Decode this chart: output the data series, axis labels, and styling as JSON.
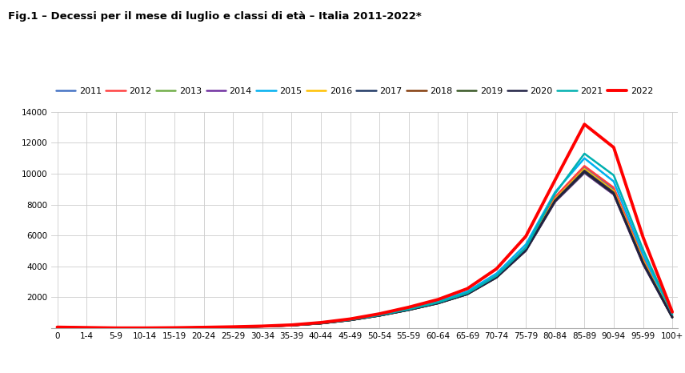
{
  "title": "Fig.1 – Decessi per il mese di luglio e classi di età – Italia 2011-2022*",
  "age_groups": [
    "0",
    "1-4",
    "5-9",
    "10-14",
    "15-19",
    "20-24",
    "25-29",
    "30-34",
    "35-39",
    "40-44",
    "45-49",
    "50-54",
    "55-59",
    "60-64",
    "65-69",
    "70-74",
    "75-79",
    "80-84",
    "85-89",
    "90-94",
    "95-99",
    "100+"
  ],
  "years": [
    "2011",
    "2012",
    "2013",
    "2014",
    "2015",
    "2016",
    "2017",
    "2018",
    "2019",
    "2020",
    "2021",
    "2022"
  ],
  "colors": {
    "2011": "#4472C4",
    "2012": "#FF4040",
    "2013": "#70AD47",
    "2014": "#7030A0",
    "2015": "#00B0F0",
    "2016": "#FFC000",
    "2017": "#1F3864",
    "2018": "#843C0C",
    "2019": "#375623",
    "2020": "#1F2044",
    "2021": "#00B0B0",
    "2022": "#FF0000"
  },
  "linewidths": {
    "2011": 1.8,
    "2012": 1.8,
    "2013": 1.8,
    "2014": 1.8,
    "2015": 1.8,
    "2016": 1.8,
    "2017": 1.8,
    "2018": 1.8,
    "2019": 1.8,
    "2020": 1.8,
    "2021": 1.8,
    "2022": 2.8
  },
  "data": {
    "2011": [
      60,
      40,
      18,
      18,
      30,
      55,
      85,
      125,
      195,
      330,
      545,
      845,
      1220,
      1660,
      2260,
      3380,
      5180,
      8450,
      10400,
      9000,
      4500,
      750
    ],
    "2012": [
      60,
      40,
      18,
      18,
      30,
      55,
      85,
      125,
      195,
      330,
      545,
      850,
      1225,
      1665,
      2265,
      3400,
      5210,
      8500,
      10500,
      9100,
      4550,
      760
    ],
    "2013": [
      58,
      38,
      17,
      17,
      28,
      52,
      82,
      122,
      190,
      322,
      535,
      835,
      1205,
      1640,
      2230,
      3330,
      5080,
      8300,
      10200,
      8800,
      4300,
      720
    ],
    "2014": [
      55,
      35,
      16,
      16,
      26,
      50,
      80,
      118,
      185,
      315,
      525,
      820,
      1185,
      1615,
      2200,
      3280,
      5010,
      8180,
      10050,
      8650,
      4150,
      700
    ],
    "2015": [
      62,
      42,
      19,
      19,
      32,
      58,
      90,
      132,
      205,
      348,
      572,
      885,
      1282,
      1745,
      2375,
      3545,
      5420,
      8820,
      11000,
      9500,
      4800,
      820
    ],
    "2016": [
      58,
      38,
      17,
      17,
      28,
      52,
      82,
      122,
      190,
      322,
      535,
      835,
      1205,
      1645,
      2238,
      3345,
      5120,
      8350,
      10300,
      8880,
      4380,
      730
    ],
    "2017": [
      57,
      37,
      16,
      16,
      27,
      51,
      81,
      121,
      188,
      318,
      530,
      828,
      1198,
      1632,
      2220,
      3315,
      5070,
      8280,
      10200,
      8780,
      4280,
      715
    ],
    "2018": [
      56,
      36,
      16,
      16,
      26,
      50,
      80,
      119,
      186,
      314,
      524,
      820,
      1188,
      1622,
      2208,
      3300,
      5050,
      8250,
      10150,
      8730,
      4230,
      705
    ],
    "2019": [
      55,
      35,
      15,
      15,
      25,
      49,
      78,
      117,
      184,
      311,
      520,
      815,
      1182,
      1612,
      2198,
      3285,
      5030,
      8220,
      10100,
      8700,
      4200,
      698
    ],
    "2020": [
      56,
      36,
      16,
      16,
      26,
      50,
      80,
      118,
      185,
      312,
      522,
      818,
      1185,
      1618,
      2205,
      3298,
      5045,
      8248,
      10140,
      8720,
      4210,
      700
    ],
    "2021": [
      60,
      40,
      17,
      17,
      28,
      53,
      83,
      124,
      193,
      328,
      542,
      848,
      1225,
      1665,
      2268,
      3395,
      5210,
      8720,
      11300,
      9900,
      5100,
      920
    ],
    "2022": [
      70,
      45,
      20,
      20,
      34,
      60,
      92,
      138,
      215,
      368,
      600,
      935,
      1360,
      1860,
      2560,
      3850,
      5950,
      9600,
      13200,
      11700,
      5900,
      1050
    ]
  },
  "ylim": [
    0,
    14000
  ],
  "yticks": [
    0,
    2000,
    4000,
    6000,
    8000,
    10000,
    12000,
    14000
  ],
  "background_color": "#ffffff",
  "grid_color": "#cccccc"
}
